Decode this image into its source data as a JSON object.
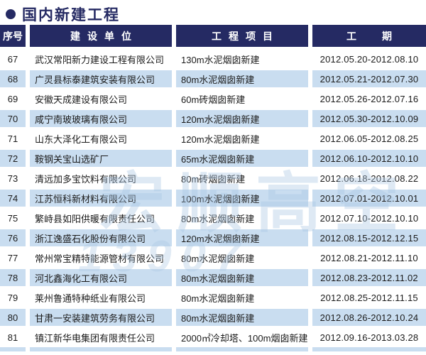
{
  "title": "国内新建工程",
  "colors": {
    "navy": "#252a63",
    "row_stripe": "#c9ddf0",
    "text": "#1b1b1b",
    "watermark": "#a9c7e4"
  },
  "table": {
    "headers": [
      "序号",
      "建设单位",
      "工程项目",
      "工期"
    ],
    "rows": [
      {
        "no": "67",
        "company": "武汉常阳新力建设工程有限公司",
        "project": "130m水泥烟囱新建",
        "period": "2012.05.20-2012.08.10"
      },
      {
        "no": "68",
        "company": "广灵县标泰建筑安装有限公司",
        "project": "80m水泥烟囱新建",
        "period": "2012.05.21-2012.07.30"
      },
      {
        "no": "69",
        "company": "安徽天成建设有限公司",
        "project": "60m砖烟囱新建",
        "period": "2012.05.26-2012.07.16"
      },
      {
        "no": "70",
        "company": "咸宁南玻玻璃有限公司",
        "project": "120m水泥烟囱新建",
        "period": "2012.05.30-2012.10.09"
      },
      {
        "no": "71",
        "company": "山东大泽化工有限公司",
        "project": "120m水泥烟囱新建",
        "period": "2012.06.05-2012.08.25"
      },
      {
        "no": "72",
        "company": "鞍钢关宝山选矿厂",
        "project": "65m水泥烟囱新建",
        "period": "2012.06.10-2012.10.10"
      },
      {
        "no": "73",
        "company": "清远加多宝饮料有限公司",
        "project": "80m砖烟囱新建",
        "period": "2012.06.18-2012.08.22"
      },
      {
        "no": "74",
        "company": "江苏恒科新材料有限公司",
        "project": "100m水泥烟囱新建",
        "period": "2012.07.01-2012.10.01"
      },
      {
        "no": "75",
        "company": "繁峙县如阳供暖有限责任公司",
        "project": "80m水泥烟囱新建",
        "period": "2012.07.10-2012.10.10"
      },
      {
        "no": "76",
        "company": "浙江逸盛石化股份有限公司",
        "project": "120m水泥烟囱新建",
        "period": "2012.08.15-2012.12.15"
      },
      {
        "no": "77",
        "company": "常州常宝精特能源管材有限公司",
        "project": "80m水泥烟囱新建",
        "period": "2012.08.21-2012.11.10"
      },
      {
        "no": "78",
        "company": "河北鑫海化工有限公司",
        "project": "80m水泥烟囱新建",
        "period": "2012.08.23-2012.11.02"
      },
      {
        "no": "79",
        "company": "莱州鲁通特种纸业有限公司",
        "project": "80m水泥烟囱新建",
        "period": "2012.08.25-2012.11.15"
      },
      {
        "no": "80",
        "company": "甘肃一安装建筑劳务有限公司",
        "project": "80m水泥烟囱新建",
        "period": "2012.08.26-2012.10.24"
      },
      {
        "no": "81",
        "company": "镇江新华电集团有限责任公司",
        "project": "2000㎡冷却塔、100m烟囱新建",
        "period": "2012.09.16-2013.03.28"
      }
    ]
  },
  "watermark": {
    "line1": "宏顺高空",
    "line2": "13907"
  }
}
